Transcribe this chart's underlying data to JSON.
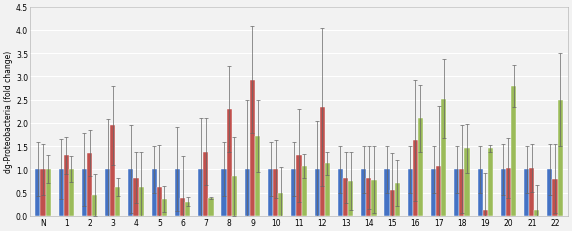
{
  "categories": [
    "N",
    "1",
    "2",
    "3",
    "4",
    "5",
    "6",
    "7",
    "8",
    "9",
    "10",
    "11",
    "12",
    "13",
    "14",
    "15",
    "16",
    "17",
    "18",
    "19",
    "20",
    "21",
    "22"
  ],
  "blue": [
    1.0,
    1.0,
    1.0,
    1.0,
    1.0,
    1.0,
    1.0,
    1.0,
    1.0,
    1.0,
    1.0,
    1.0,
    1.0,
    1.0,
    1.0,
    1.0,
    1.0,
    1.0,
    1.0,
    1.0,
    1.0,
    1.0,
    1.0
  ],
  "red": [
    1.0,
    1.3,
    1.35,
    1.95,
    0.82,
    0.62,
    0.38,
    1.38,
    2.3,
    2.93,
    1.0,
    1.3,
    2.35,
    0.82,
    0.82,
    0.55,
    1.62,
    1.08,
    1.0,
    0.12,
    1.03,
    1.03,
    0.8
  ],
  "green": [
    1.0,
    1.0,
    0.45,
    0.62,
    0.62,
    0.35,
    0.3,
    0.38,
    0.85,
    1.72,
    0.5,
    1.07,
    1.13,
    0.75,
    0.78,
    0.7,
    2.1,
    2.52,
    1.45,
    1.45,
    2.8,
    0.12,
    2.5
  ],
  "blue_err": [
    0.58,
    0.65,
    0.78,
    1.08,
    0.95,
    0.5,
    0.9,
    1.1,
    0.58,
    1.5,
    0.58,
    0.58,
    1.05,
    0.5,
    0.5,
    0.5,
    0.5,
    0.5,
    0.5,
    0.5,
    0.55,
    0.5,
    0.55
  ],
  "red_err": [
    0.55,
    0.4,
    0.5,
    0.85,
    0.55,
    0.9,
    0.9,
    0.72,
    0.92,
    1.15,
    0.62,
    1.0,
    1.7,
    0.55,
    0.68,
    0.8,
    1.3,
    1.28,
    0.95,
    0.8,
    0.65,
    0.52,
    0.75
  ],
  "green_err": [
    0.3,
    0.28,
    0.45,
    0.2,
    0.75,
    0.28,
    0.1,
    0.02,
    0.85,
    0.78,
    0.55,
    0.25,
    0.25,
    0.62,
    0.72,
    0.5,
    0.72,
    0.85,
    0.52,
    0.08,
    0.45,
    0.55,
    1.0
  ],
  "ylabel": "dg-Proteobacteria (fold change)",
  "ylim": [
    0.0,
    4.5
  ],
  "yticks": [
    0.0,
    0.5,
    1.0,
    1.5,
    2.0,
    2.5,
    3.0,
    3.5,
    4.0,
    4.5
  ],
  "bar_width": 0.22,
  "blue_color": "#4472C4",
  "red_color": "#C0504D",
  "green_color": "#9BBB59",
  "bg_color": "#F2F2F2",
  "grid_color": "#FFFFFF"
}
